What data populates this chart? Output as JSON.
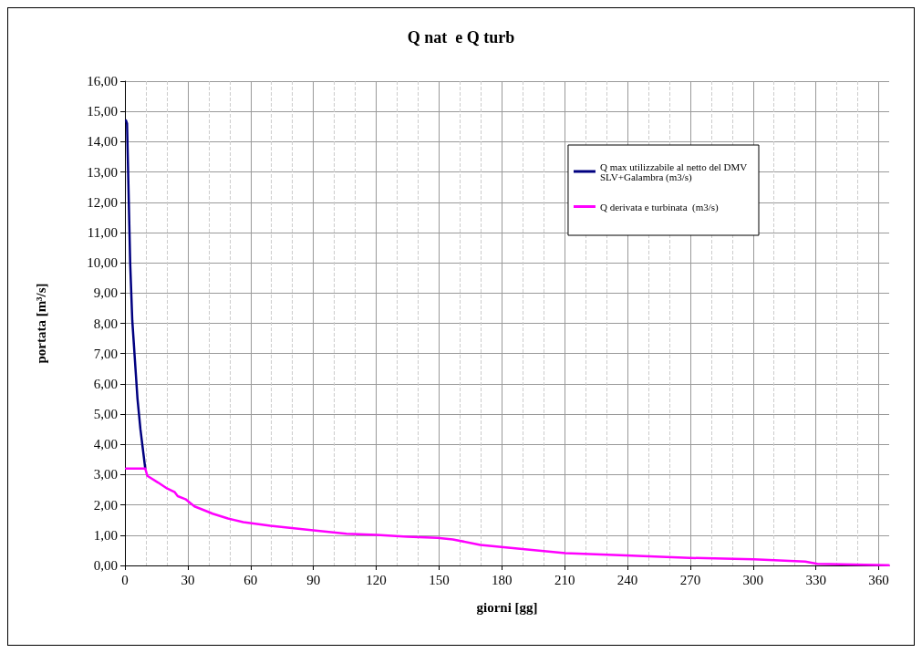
{
  "chart_data": {
    "type": "line",
    "title": "Q nat  e Q turb",
    "xlabel": "giorni [gg]",
    "ylabel": "portata [m³/s]",
    "xlim": [
      0,
      365
    ],
    "xticks": [
      0,
      30,
      60,
      90,
      120,
      150,
      180,
      210,
      240,
      270,
      300,
      330,
      360
    ],
    "ylim": [
      0,
      16
    ],
    "yticks": [
      {
        "value": 0,
        "label": "0,00"
      },
      {
        "value": 1,
        "label": "1,00"
      },
      {
        "value": 2,
        "label": "2,00"
      },
      {
        "value": 3,
        "label": "3,00"
      },
      {
        "value": 4,
        "label": "4,00"
      },
      {
        "value": 5,
        "label": "5,00"
      },
      {
        "value": 6,
        "label": "6,00"
      },
      {
        "value": 7,
        "label": "7,00"
      },
      {
        "value": 8,
        "label": "8,00"
      },
      {
        "value": 9,
        "label": "9,00"
      },
      {
        "value": 10,
        "label": "10,00"
      },
      {
        "value": 11,
        "label": "11,00"
      },
      {
        "value": 12,
        "label": "12,00"
      },
      {
        "value": 13,
        "label": "13,00"
      },
      {
        "value": 14,
        "label": "14,00"
      },
      {
        "value": 15,
        "label": "15,00"
      },
      {
        "value": 16,
        "label": "16,00"
      }
    ],
    "grid": true,
    "legend": "top right",
    "marker": "none",
    "line_style": "solid",
    "series": [
      {
        "name": "Q max utilizzabile al netto del DMV SLV+Galambra (m3/s)",
        "color": "#000080",
        "x": [
          0.5,
          1,
          2.5,
          3.5,
          6,
          7.4,
          9.7
        ],
        "values": [
          14.7,
          14.6,
          10.0,
          8.1,
          5.5,
          4.5,
          3.2
        ]
      },
      {
        "name": "Q derivata e turbinata  (m3/s)",
        "color": "#ff00ff",
        "x": [
          0.5,
          9.7,
          10.7,
          15.8,
          20.2,
          23.8,
          25.2,
          28.9,
          33.2,
          37.6,
          41.9,
          49.2,
          56.5,
          69.5,
          86.9,
          105.8,
          120.3,
          134.8,
          149.3,
          156.6,
          169.7,
          184.2,
          210.3,
          239.3,
          269.8,
          300.3,
          324.9,
          330.7,
          364.8
        ],
        "values": [
          3.2,
          3.2,
          2.96,
          2.74,
          2.54,
          2.42,
          2.29,
          2.19,
          1.95,
          1.83,
          1.71,
          1.55,
          1.43,
          1.31,
          1.18,
          1.05,
          1.01,
          0.95,
          0.91,
          0.86,
          0.68,
          0.58,
          0.41,
          0.33,
          0.25,
          0.2,
          0.13,
          0.05,
          0.01
        ]
      }
    ]
  }
}
